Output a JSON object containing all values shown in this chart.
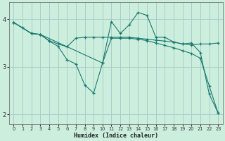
{
  "bg_color": "#cceedd",
  "grid_color": "#aacccc",
  "line_color": "#1a7a6e",
  "xlabel": "Humidex (Indice chaleur)",
  "xlim": [
    -0.5,
    23.5
  ],
  "ylim": [
    1.8,
    4.35
  ],
  "yticks": [
    2,
    3,
    4
  ],
  "xticks": [
    0,
    1,
    2,
    3,
    4,
    5,
    6,
    7,
    8,
    9,
    10,
    11,
    12,
    13,
    14,
    15,
    16,
    17,
    18,
    19,
    20,
    21,
    22,
    23
  ],
  "line1_x": [
    0,
    1,
    2,
    3,
    4,
    5,
    6,
    7,
    8,
    9,
    10,
    11,
    12,
    13,
    14,
    15,
    16,
    17,
    18,
    19,
    20,
    21,
    22,
    23
  ],
  "line1_y": [
    3.93,
    3.82,
    3.7,
    3.68,
    3.54,
    3.43,
    3.15,
    3.06,
    2.62,
    2.45,
    3.08,
    3.95,
    3.7,
    3.88,
    4.14,
    4.08,
    3.62,
    3.62,
    3.52,
    3.48,
    3.5,
    3.3,
    2.43,
    2.03
  ],
  "line2_x": [
    0,
    2,
    3,
    4,
    5,
    6,
    7,
    8,
    9,
    10,
    11,
    12,
    13,
    14,
    15,
    16,
    17,
    18,
    19,
    20,
    21,
    22,
    23
  ],
  "line2_y": [
    3.93,
    3.7,
    3.68,
    3.55,
    3.48,
    3.42,
    3.6,
    3.62,
    3.62,
    3.62,
    3.62,
    3.62,
    3.62,
    3.6,
    3.58,
    3.56,
    3.54,
    3.52,
    3.48,
    3.46,
    3.48,
    3.48,
    3.5
  ],
  "line3_x": [
    0,
    2,
    3,
    10,
    11,
    12,
    13,
    14,
    15,
    16,
    17,
    18,
    19,
    20,
    21,
    22,
    23
  ],
  "line3_y": [
    3.93,
    3.7,
    3.68,
    3.08,
    3.6,
    3.6,
    3.6,
    3.58,
    3.55,
    3.5,
    3.45,
    3.4,
    3.34,
    3.28,
    3.18,
    2.6,
    2.03
  ]
}
